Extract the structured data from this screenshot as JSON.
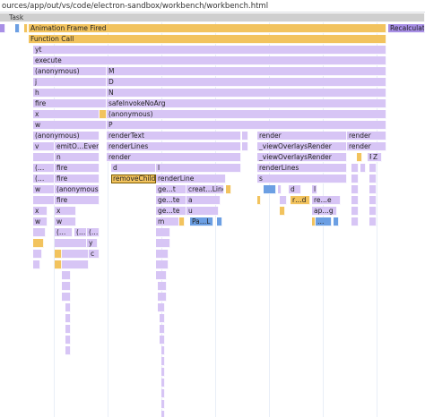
{
  "url": "ources/app/out/vs/code/electron-sandbox/workbench/workbench.html",
  "labels": {
    "task": "Task",
    "animation_frame": "Animation Frame Fired",
    "function_call": "Function Call",
    "recalculate": "Recalculate",
    "yt": "yt",
    "execute": "execute",
    "anonymous": "(anonymous)",
    "M": "M",
    "j": "j",
    "D": "D",
    "h": "h",
    "N": "N",
    "fire": "fire",
    "safeInvoke": "safeInvokeNoArg",
    "x": "x",
    "w": "w",
    "P": "P",
    "renderText": "renderText",
    "render": "render",
    "v": "v",
    "emit": "emitO…Event",
    "renderLines": "renderLines",
    "viewOverlaysRender": "_viewOverlaysRender",
    "n": "n",
    "d": "d",
    "l": "l",
    "open": "(…",
    "s": "s",
    "removeChild": "removeChild",
    "renderLine": "renderLine",
    "ge": "ge…t",
    "creat": "creat…Line",
    "ge2": "ge…te",
    "a": "a",
    "u": "u",
    "m": "m",
    "pal": "Pa…L",
    "rd": "r…d",
    "re": "re…e",
    "ap": "ap…g",
    "o": "o",
    "ren": "ren…r",
    "p": "p",
    "Z": "Z",
    "y": "y",
    "c": "c",
    "k": "k",
    "dots": "…",
    "e": "e"
  }
}
